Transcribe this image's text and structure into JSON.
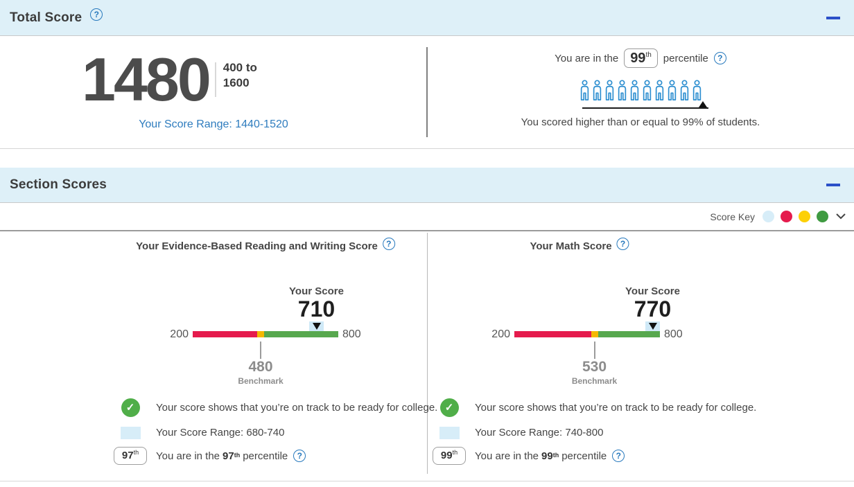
{
  "glyphs": {
    "question": "?",
    "check": "✓"
  },
  "colors": {
    "band_bg": "#def0f8",
    "accent_blue": "#2779bd",
    "link_blue": "#2e7cbe",
    "people_blue": "#2e8fd0",
    "collapse_blue": "#2b50c8",
    "bar_red": "#e51b4d",
    "bar_yellow": "#f5b800",
    "bar_green": "#57a84e",
    "range_band_blue": "#cfe9f7",
    "check_green": "#50ae49"
  },
  "total": {
    "title": "Total Score",
    "score": "1480",
    "scale_line1": "400 to",
    "scale_line2": "1600",
    "score_range_label": "Your Score Range: 1440-1520",
    "percentile_prefix": "You are in the",
    "percentile_value": "99",
    "ordinal": "th",
    "percentile_label": "percentile",
    "people_count": 10,
    "caption": "You scored higher than or equal to 99% of students."
  },
  "sections": {
    "title": "Section Scores",
    "score_key_label": "Score Key",
    "score_key_colors": [
      "#d7edf8",
      "#e51b4d",
      "#fdd006",
      "#3f9b41"
    ],
    "columns": [
      {
        "title": "Your Evidence-Based Reading and Writing Score",
        "your_score_label": "Your Score",
        "score": 710,
        "min": 200,
        "max": 800,
        "benchmark": 480,
        "benchmark_label": "Benchmark",
        "range_low": 680,
        "range_high": 740,
        "on_track_text": "Your score shows that you’re on track to be ready for college.",
        "score_range_text": "Your Score Range: 680-740",
        "percentile_prefix": "You are in the",
        "percentile_value": "97",
        "ordinal": "th",
        "percentile_label": "percentile"
      },
      {
        "title": "Your Math Score",
        "your_score_label": "Your Score",
        "score": 770,
        "min": 200,
        "max": 800,
        "benchmark": 530,
        "benchmark_label": "Benchmark",
        "range_low": 740,
        "range_high": 800,
        "on_track_text": "Your score shows that you’re on track to be ready for college.",
        "score_range_text": "Your Score Range: 740-800",
        "percentile_prefix": "You are in the",
        "percentile_value": "99",
        "ordinal": "th",
        "percentile_label": "percentile"
      }
    ]
  }
}
